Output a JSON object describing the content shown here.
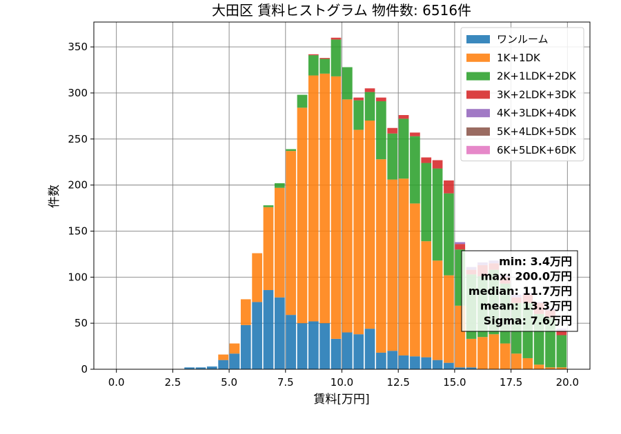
{
  "chart_data": {
    "type": "bar",
    "stacked": true,
    "title": "大田区 賃料ヒストグラム 物件数: 6516件",
    "xlabel": "賃料[万円]",
    "ylabel": "件数",
    "xlim": [
      -1.0,
      21.0
    ],
    "ylim": [
      0,
      377
    ],
    "xticks": [
      "0.0",
      "2.5",
      "5.0",
      "7.5",
      "10.0",
      "12.5",
      "15.0",
      "17.5",
      "20.0"
    ],
    "yticks": [
      "0",
      "50",
      "100",
      "150",
      "200",
      "250",
      "300",
      "350"
    ],
    "grid": true,
    "legend_position": "top-right",
    "bin_width": 0.5,
    "x": [
      0.0,
      0.5,
      1.0,
      1.5,
      2.0,
      2.5,
      3.0,
      3.5,
      4.0,
      4.5,
      5.0,
      5.5,
      6.0,
      6.5,
      7.0,
      7.5,
      8.0,
      8.5,
      9.0,
      9.5,
      10.0,
      10.5,
      11.0,
      11.5,
      12.0,
      12.5,
      13.0,
      13.5,
      14.0,
      14.5,
      15.0,
      15.5,
      16.0,
      16.5,
      17.0,
      17.5,
      18.0,
      18.5,
      19.0,
      19.5
    ],
    "series": [
      {
        "name": "ワンルーム",
        "color": "#1f77b4",
        "values": [
          0,
          0,
          0,
          0,
          0,
          0,
          2,
          2,
          3,
          10,
          17,
          48,
          73,
          86,
          78,
          59,
          50,
          52,
          50,
          33,
          40,
          38,
          44,
          18,
          20,
          15,
          14,
          13,
          10,
          7,
          2,
          2,
          0,
          0,
          0,
          0,
          0,
          0,
          0,
          0
        ]
      },
      {
        "name": "1K+1DK",
        "color": "#ff7f0e",
        "values": [
          0,
          0,
          0,
          0,
          0,
          0,
          0,
          0,
          0,
          6,
          11,
          28,
          53,
          90,
          119,
          178,
          234,
          267,
          271,
          285,
          253,
          222,
          226,
          210,
          186,
          192,
          166,
          126,
          108,
          95,
          67,
          31,
          35,
          38,
          28,
          17,
          12,
          5,
          2,
          2
        ]
      },
      {
        "name": "2K+1LDK+2DK",
        "color": "#2ca02c",
        "values": [
          0,
          0,
          0,
          0,
          0,
          0,
          0,
          0,
          0,
          0,
          0,
          0,
          0,
          2,
          5,
          2,
          14,
          22,
          16,
          40,
          35,
          32,
          31,
          63,
          50,
          65,
          73,
          85,
          100,
          89,
          61,
          70,
          66,
          70,
          65,
          55,
          60,
          55,
          54,
          35
        ]
      },
      {
        "name": "3K+2LDK+3DK",
        "color": "#d62728",
        "values": [
          0,
          0,
          0,
          0,
          0,
          0,
          0,
          0,
          0,
          0,
          0,
          0,
          0,
          0,
          0,
          0,
          0,
          1,
          1,
          2,
          0,
          3,
          4,
          4,
          6,
          4,
          4,
          6,
          9,
          14,
          6,
          5,
          12,
          7,
          7,
          6,
          9,
          12,
          8,
          5
        ]
      },
      {
        "name": "4K+3LDK+4DK",
        "color": "#9467bd",
        "values": [
          0,
          0,
          0,
          0,
          0,
          0,
          0,
          0,
          0,
          0,
          0,
          0,
          0,
          0,
          0,
          0,
          0,
          0,
          0,
          0,
          0,
          0,
          0,
          0,
          0,
          0,
          0,
          0,
          0,
          0,
          2,
          3,
          3,
          3,
          2,
          3,
          2,
          1,
          2,
          2
        ]
      },
      {
        "name": "5K+4LDK+5DK",
        "color": "#8c564b",
        "values": [
          0,
          0,
          0,
          0,
          0,
          0,
          0,
          0,
          0,
          0,
          0,
          0,
          0,
          0,
          0,
          0,
          0,
          0,
          0,
          0,
          0,
          0,
          0,
          0,
          0,
          0,
          0,
          0,
          0,
          0,
          0,
          0,
          0,
          0,
          0,
          0,
          0,
          0,
          0,
          0
        ]
      },
      {
        "name": "6K+5LDK+6DK",
        "color": "#e377c2",
        "values": [
          0,
          0,
          0,
          0,
          0,
          0,
          0,
          0,
          0,
          0,
          0,
          0,
          0,
          0,
          0,
          0,
          0,
          0,
          0,
          0,
          0,
          0,
          0,
          0,
          0,
          0,
          0,
          0,
          0,
          0,
          0,
          0,
          0,
          0,
          0,
          0,
          0,
          0,
          0,
          0
        ]
      }
    ],
    "stats": [
      "min: 3.4万円",
      "max: 200.0万円",
      "median: 11.7万円",
      "mean: 13.3万円",
      "Sigma: 7.6万円"
    ]
  }
}
